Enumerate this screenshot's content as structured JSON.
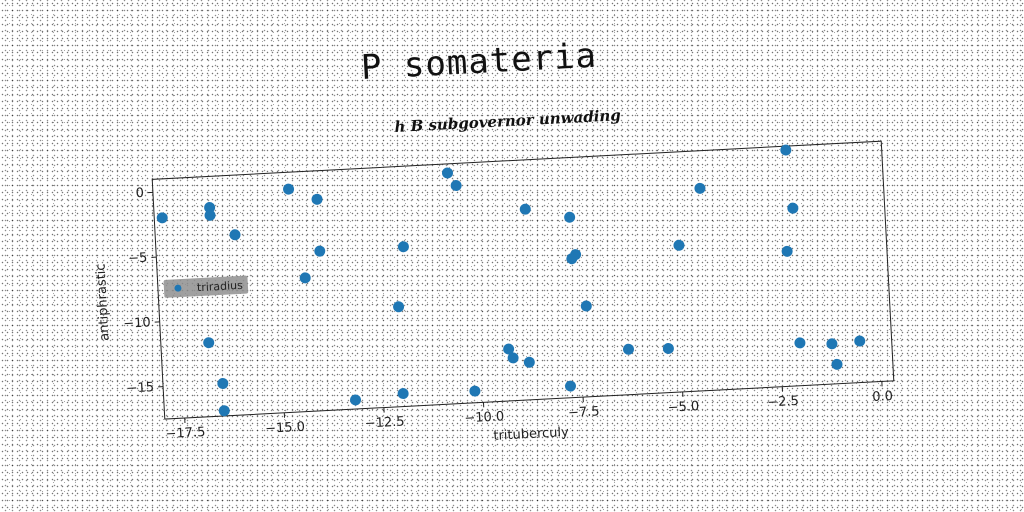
{
  "title": "P somateria",
  "subtitle": "h B subgovernor unwading",
  "chart_data": {
    "type": "scatter",
    "title": "P somateria",
    "subtitle": "h B subgovernor unwading",
    "xlabel": "trituberculy",
    "ylabel": "antiphrastic",
    "xlim": [
      -18.0,
      0.3
    ],
    "ylim": [
      -17.5,
      1.0
    ],
    "xticks": [
      -17.5,
      -15.0,
      -12.5,
      -10.0,
      -7.5,
      -5.0,
      -2.5,
      0.0
    ],
    "xtick_labels": [
      "−17.5",
      "−15.0",
      "−12.5",
      "−10.0",
      "−7.5",
      "−5.0",
      "−2.5",
      "0.0"
    ],
    "yticks": [
      0,
      -5,
      -10,
      -15
    ],
    "ytick_labels": [
      "0",
      "−5",
      "−10",
      "−15"
    ],
    "grid": false,
    "legend_position": "center-left",
    "rotation_deg": -3,
    "series": [
      {
        "name": "triradius",
        "color": "#1f77b4",
        "points": [
          [
            -17.8,
            -2.0
          ],
          [
            -16.6,
            -1.4
          ],
          [
            -16.6,
            -2.0
          ],
          [
            -16.0,
            -3.6
          ],
          [
            -14.6,
            -0.3
          ],
          [
            -13.9,
            -1.2
          ],
          [
            -10.6,
            0.3
          ],
          [
            -10.4,
            -0.7
          ],
          [
            -8.7,
            -2.8
          ],
          [
            -7.6,
            -3.6
          ],
          [
            -4.3,
            -1.9
          ],
          [
            -2.1,
            0.7
          ],
          [
            -2.0,
            -3.8
          ],
          [
            -13.9,
            -5.2
          ],
          [
            -11.8,
            -5.2
          ],
          [
            -14.3,
            -7.2
          ],
          [
            -7.5,
            -6.5
          ],
          [
            -7.6,
            -6.8
          ],
          [
            -4.9,
            -6.2
          ],
          [
            -2.2,
            -7.1
          ],
          [
            -12.0,
            -9.8
          ],
          [
            -7.3,
            -10.5
          ],
          [
            -16.8,
            -11.8
          ],
          [
            -16.5,
            -15.0
          ],
          [
            -9.3,
            -13.5
          ],
          [
            -9.2,
            -14.2
          ],
          [
            -8.8,
            -14.6
          ],
          [
            -6.3,
            -14.0
          ],
          [
            -5.3,
            -14.1
          ],
          [
            -2.0,
            -14.2
          ],
          [
            -1.2,
            -14.4
          ],
          [
            -0.5,
            -14.3
          ],
          [
            -1.1,
            -16.0
          ],
          [
            -12.0,
            -16.5
          ],
          [
            -13.2,
            -16.8
          ],
          [
            -10.2,
            -16.6
          ],
          [
            -7.8,
            -16.6
          ],
          [
            -16.5,
            -17.1
          ]
        ]
      }
    ]
  }
}
